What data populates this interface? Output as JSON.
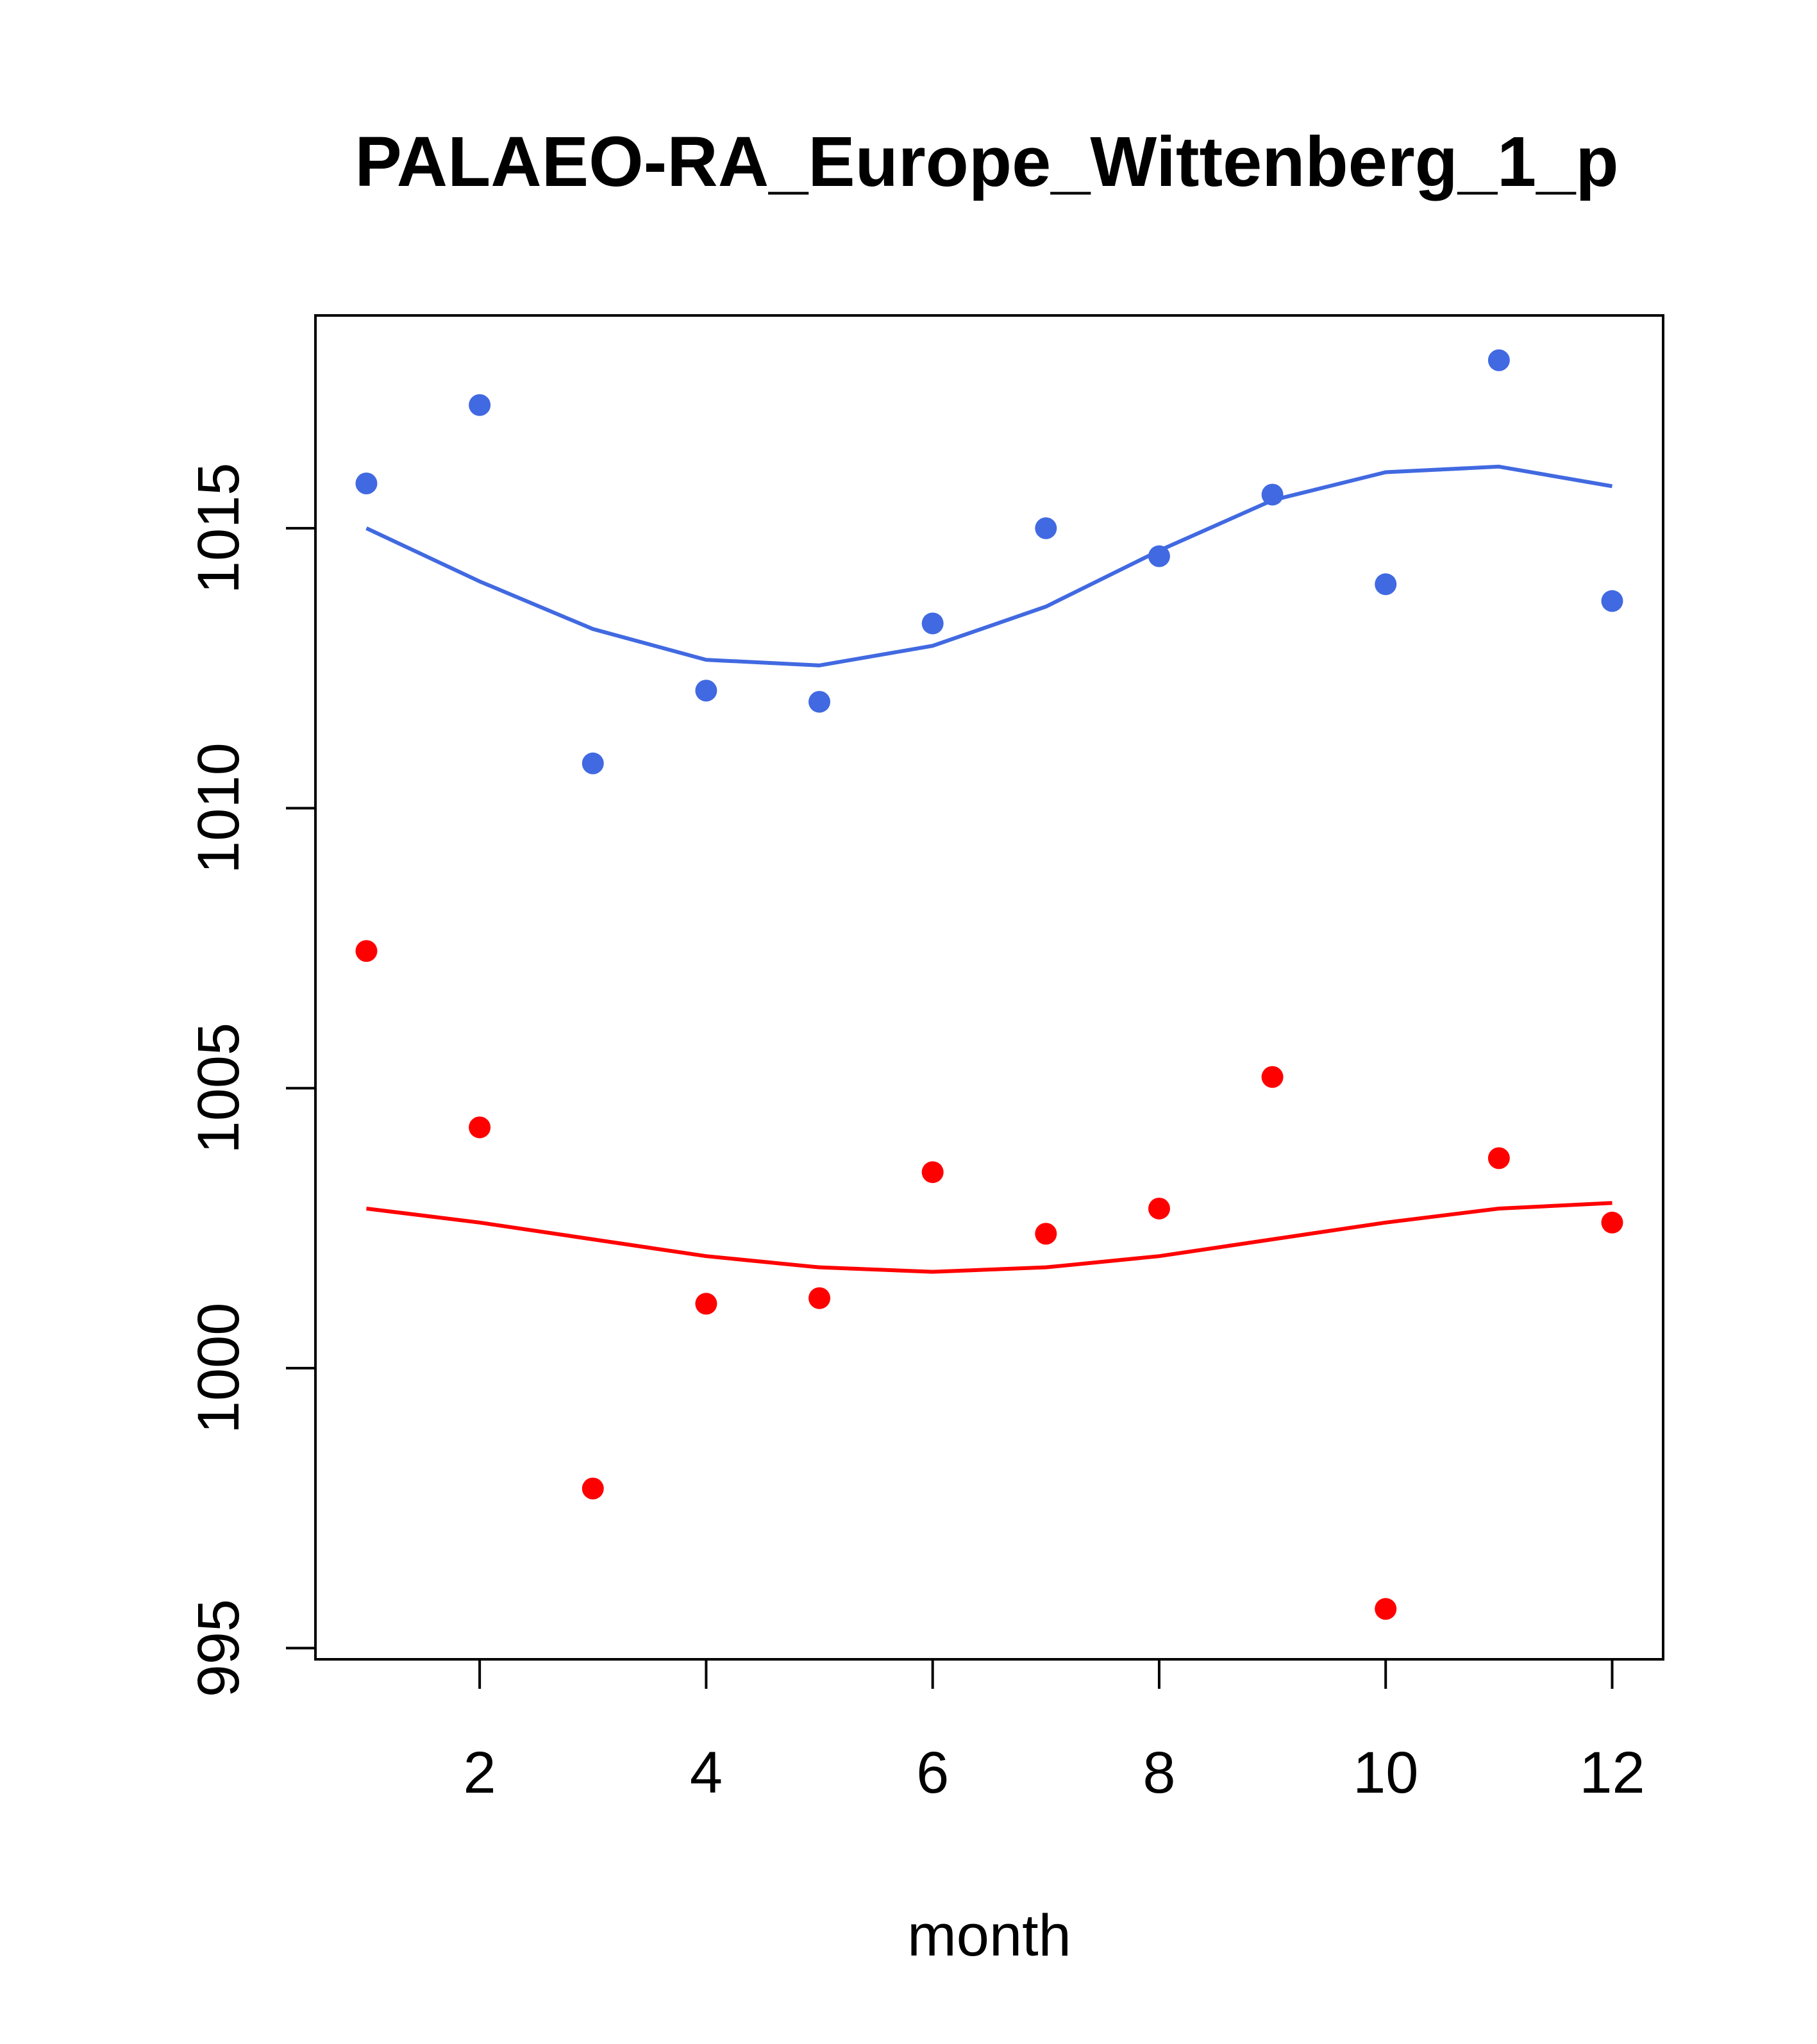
{
  "chart_data": {
    "type": "scatter",
    "title": "PALAEO-RA_Europe_Wittenberg_1_p",
    "xlabel": "month",
    "ylabel": "",
    "xlim": [
      0.55,
      12.45
    ],
    "ylim": [
      994.8,
      1018.8
    ],
    "xticks": [
      2,
      4,
      6,
      8,
      10,
      12
    ],
    "yticks": [
      995,
      1000,
      1005,
      1010,
      1015
    ],
    "series": [
      {
        "name": "blue points",
        "color": "#4169E1",
        "kind": "points",
        "x": [
          1,
          2,
          3,
          4,
          5,
          6,
          7,
          8,
          9,
          10,
          11,
          12
        ],
        "values": [
          1015.8,
          1017.2,
          1010.8,
          1012.1,
          1011.9,
          1013.3,
          1015.0,
          1014.5,
          1015.6,
          1014.0,
          1018.0,
          1013.7
        ]
      },
      {
        "name": "blue curve",
        "color": "#4169E1",
        "kind": "line",
        "x": [
          1,
          2,
          3,
          4,
          5,
          6,
          7,
          8,
          9,
          10,
          11,
          12
        ],
        "values": [
          1015.0,
          1014.05,
          1013.2,
          1012.65,
          1012.55,
          1012.9,
          1013.6,
          1014.6,
          1015.5,
          1016.0,
          1016.1,
          1015.75
        ]
      },
      {
        "name": "red points",
        "color": "#FF0000",
        "kind": "points",
        "x": [
          1,
          2,
          3,
          4,
          5,
          6,
          7,
          8,
          9,
          10,
          11,
          12
        ],
        "values": [
          1007.45,
          1004.3,
          997.85,
          1001.15,
          1001.25,
          1003.5,
          1002.4,
          1002.85,
          1005.2,
          995.7,
          1003.75,
          1002.6
        ]
      },
      {
        "name": "red curve",
        "color": "#FF0000",
        "kind": "line",
        "x": [
          1,
          2,
          3,
          4,
          5,
          6,
          7,
          8,
          9,
          10,
          11,
          12
        ],
        "values": [
          1002.85,
          1002.6,
          1002.3,
          1002.0,
          1001.8,
          1001.72,
          1001.8,
          1002.0,
          1002.3,
          1002.6,
          1002.85,
          1002.95
        ]
      }
    ]
  }
}
